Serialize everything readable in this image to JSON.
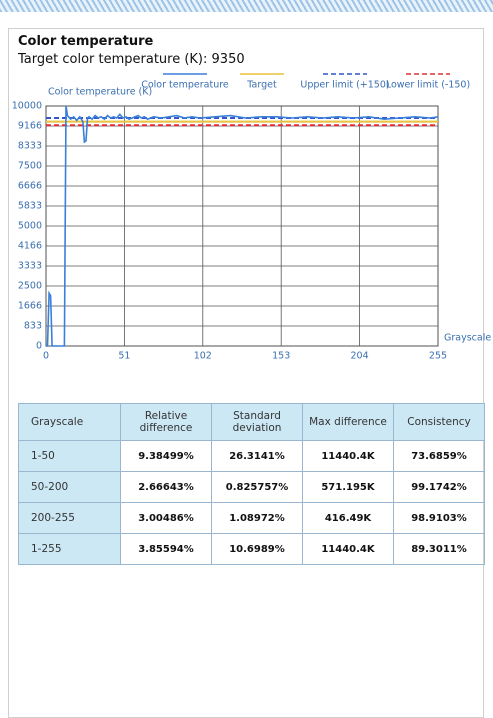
{
  "header": {
    "title": "Color temperature",
    "subtitle": "Target color temperature (K): 9350"
  },
  "chart_data": {
    "type": "line",
    "y_label": "Color temperature (K)",
    "x_label": "Grayscale",
    "xlim": [
      0,
      255
    ],
    "xticks": [
      0,
      51,
      102,
      153,
      204,
      255
    ],
    "ylim": [
      0,
      10000
    ],
    "yticks": [
      0,
      833,
      1666,
      2500,
      3333,
      4166,
      5000,
      5833,
      6666,
      7500,
      8333,
      9166,
      10000
    ],
    "grid": true,
    "series": [
      {
        "name": "Color temperature",
        "color": "#3a7fd8",
        "dash": false,
        "x": [
          0,
          1,
          2,
          3,
          4,
          12,
          13,
          14,
          16,
          18,
          20,
          22,
          24,
          25,
          26,
          27,
          28,
          30,
          32,
          34,
          36,
          38,
          40,
          42,
          44,
          46,
          48,
          50,
          52,
          54,
          56,
          58,
          60,
          62,
          64,
          66,
          68,
          70,
          75,
          80,
          85,
          90,
          95,
          100,
          110,
          120,
          130,
          140,
          150,
          160,
          170,
          180,
          190,
          200,
          210,
          220,
          230,
          240,
          250,
          255
        ],
        "values": [
          0,
          0,
          2200,
          2100,
          0,
          0,
          10000,
          9600,
          9450,
          9550,
          9400,
          9550,
          9350,
          8500,
          8550,
          9500,
          9550,
          9450,
          9600,
          9500,
          9550,
          9450,
          9600,
          9500,
          9550,
          9500,
          9650,
          9500,
          9550,
          9450,
          9500,
          9550,
          9600,
          9500,
          9550,
          9450,
          9500,
          9550,
          9500,
          9550,
          9600,
          9500,
          9550,
          9500,
          9550,
          9600,
          9500,
          9550,
          9550,
          9500,
          9550,
          9500,
          9550,
          9500,
          9550,
          9450,
          9500,
          9550,
          9500,
          9550
        ]
      },
      {
        "name": "Target",
        "color": "#e8c23a",
        "dash": false,
        "x": [
          0,
          255
        ],
        "values": [
          9350,
          9350
        ]
      },
      {
        "name": "Upper limit (+150)",
        "color": "#3355cc",
        "dash": true,
        "x": [
          0,
          255
        ],
        "values": [
          9500,
          9500
        ]
      },
      {
        "name": "Lower limit (-150)",
        "color": "#e03030",
        "dash": true,
        "x": [
          0,
          255
        ],
        "values": [
          9200,
          9200
        ]
      }
    ]
  },
  "table": {
    "columns": [
      "Grayscale",
      "Relative difference",
      "Standard deviation",
      "Max difference",
      "Consistency"
    ],
    "rows": [
      [
        "1-50",
        "9.38499%",
        "26.3141%",
        "11440.4K",
        "73.6859%"
      ],
      [
        "50-200",
        "2.66643%",
        "0.825757%",
        "571.195K",
        "99.1742%"
      ],
      [
        "200-255",
        "3.00486%",
        "1.08972%",
        "416.49K",
        "98.9103%"
      ],
      [
        "1-255",
        "3.85594%",
        "10.6989%",
        "11440.4K",
        "89.3011%"
      ]
    ]
  }
}
